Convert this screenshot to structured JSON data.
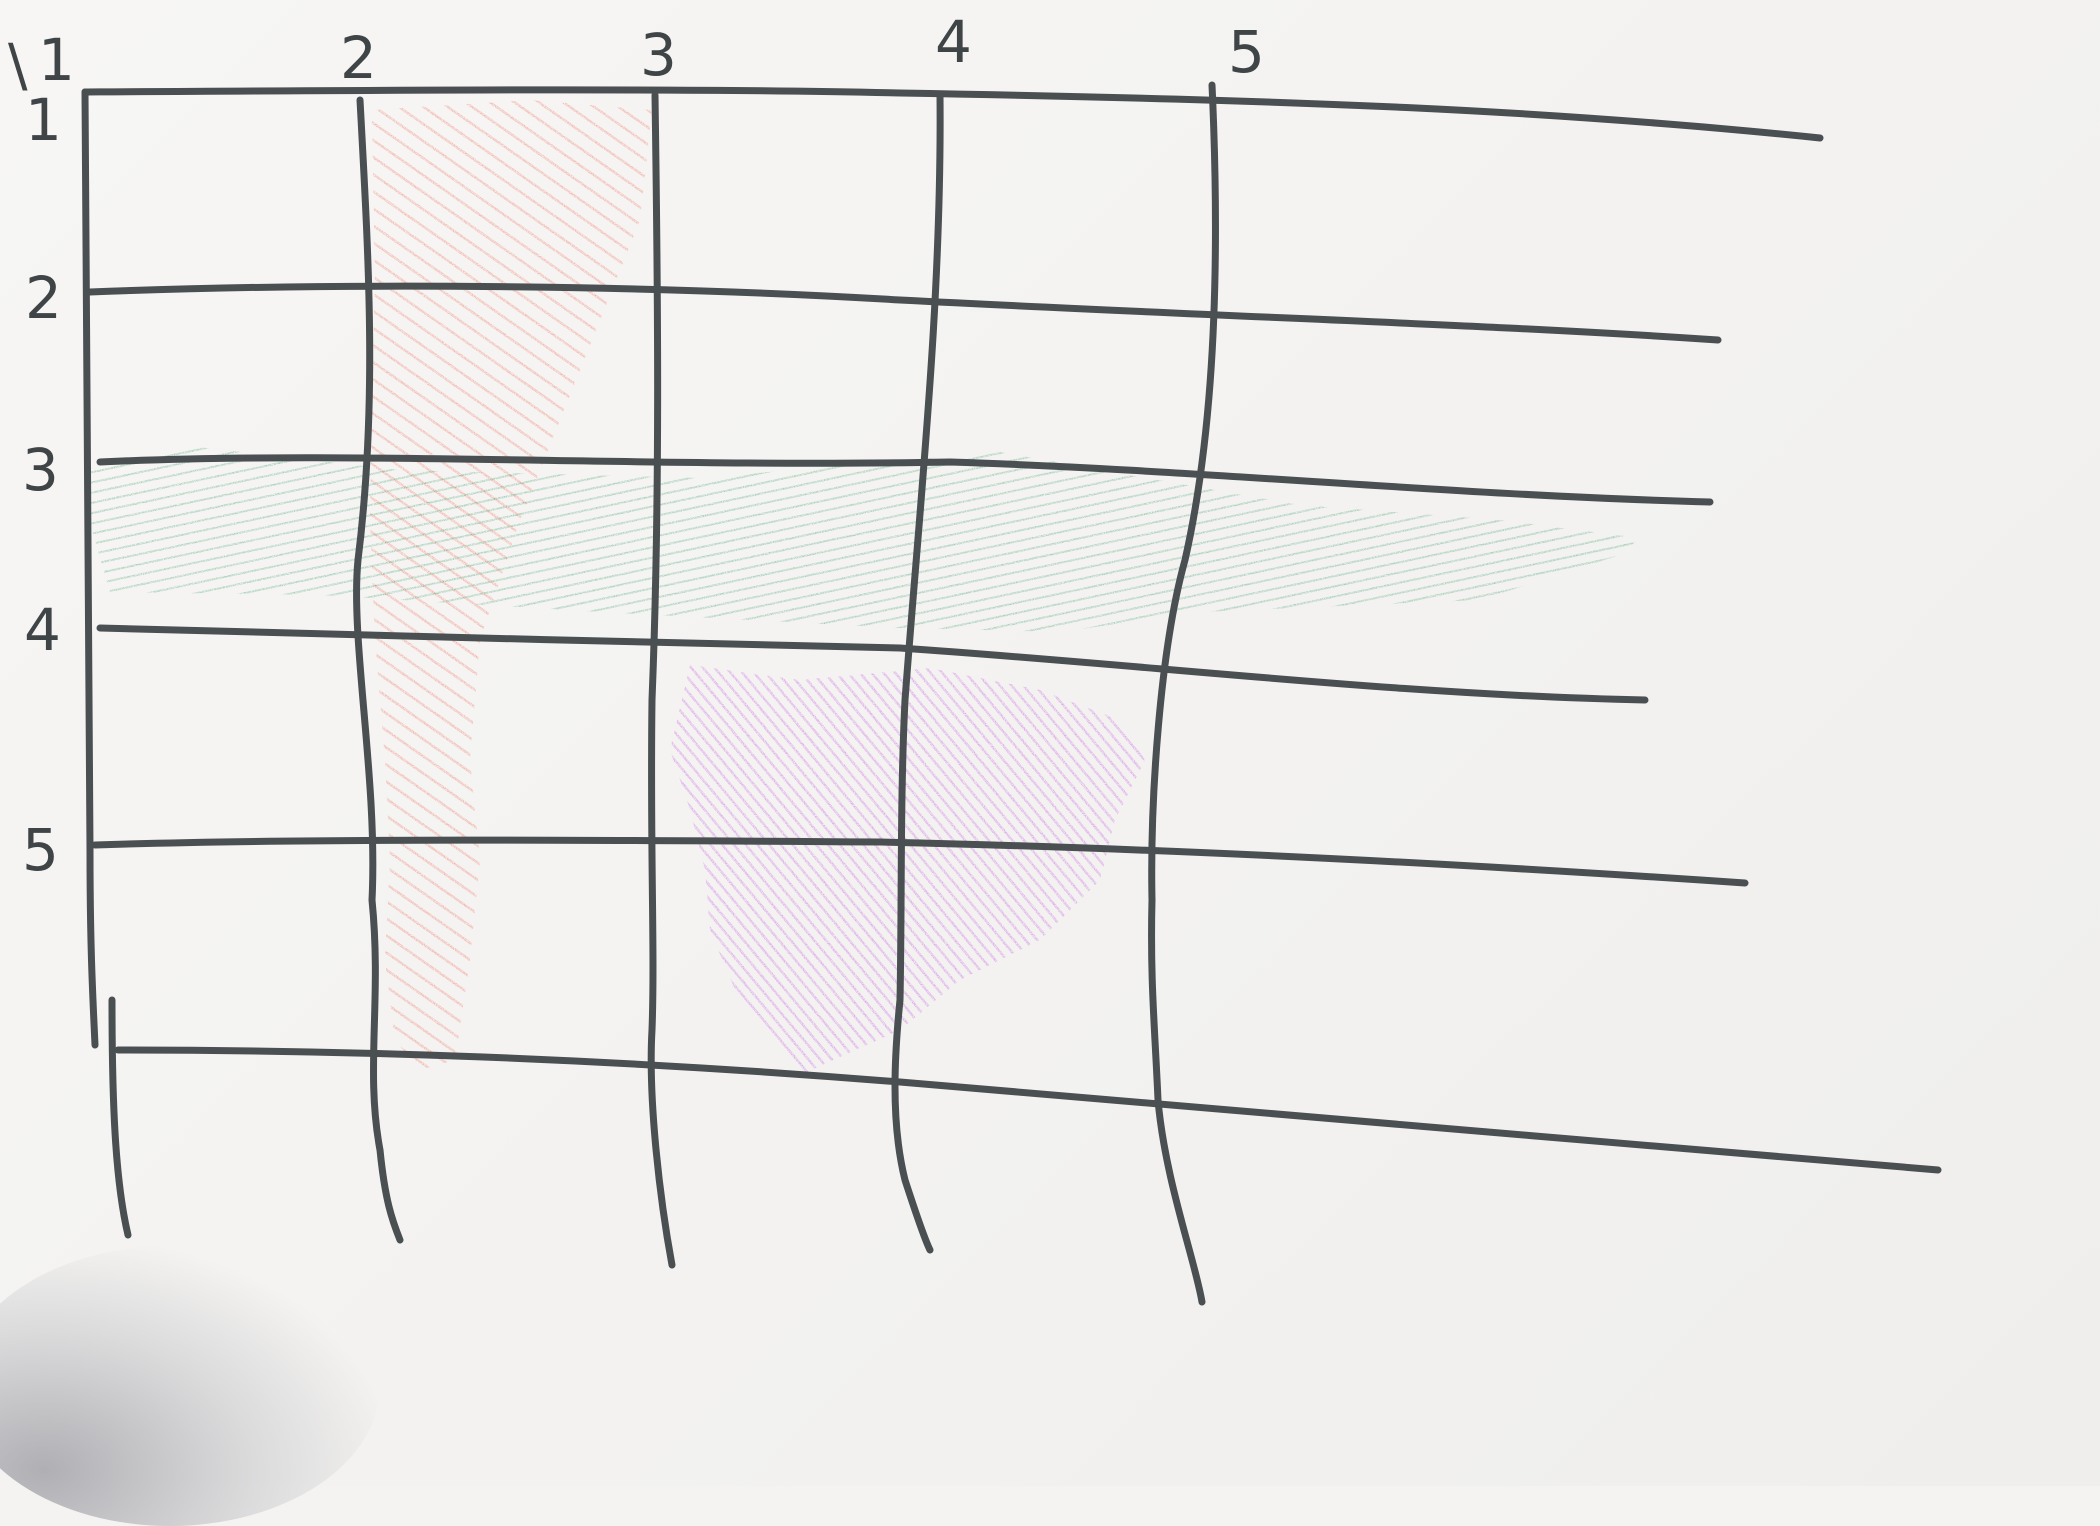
{
  "column_labels": [
    "1",
    "2",
    "3",
    "4",
    "5"
  ],
  "row_labels": [
    "1",
    "2",
    "3",
    "4",
    "5"
  ],
  "corner_mark": "\\",
  "colors": {
    "ink": "#4a4f52",
    "red_highlight": "#f07a6a",
    "green_highlight": "#4fa57a",
    "purple_highlight": "#cf7ee6"
  },
  "highlights": [
    {
      "name": "red-column",
      "color": "red_highlight",
      "region": "column 2"
    },
    {
      "name": "green-row",
      "color": "green_highlight",
      "region": "row 3"
    },
    {
      "name": "purple-block",
      "color": "purple_highlight",
      "region": "columns 3-4, rows 4-5"
    }
  ]
}
